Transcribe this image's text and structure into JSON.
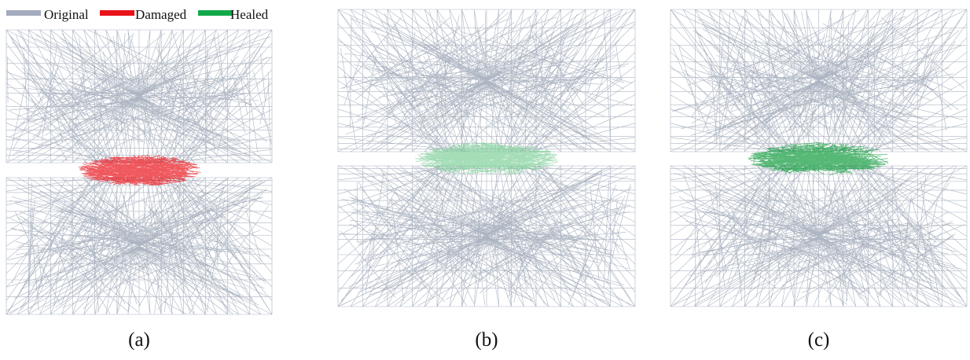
{
  "legend": {
    "items": [
      {
        "label": "Original",
        "color": "#a3abbd"
      },
      {
        "label": "Damaged",
        "color": "#e8121a"
      },
      {
        "label": "Healed",
        "color": "#12a84a"
      }
    ]
  },
  "panels": [
    {
      "label": "(a)",
      "highlight": "#e8121a"
    },
    {
      "label": "(b)",
      "highlight": "#7fcf98"
    },
    {
      "label": "(c)",
      "highlight": "#0f9a3c"
    }
  ]
}
